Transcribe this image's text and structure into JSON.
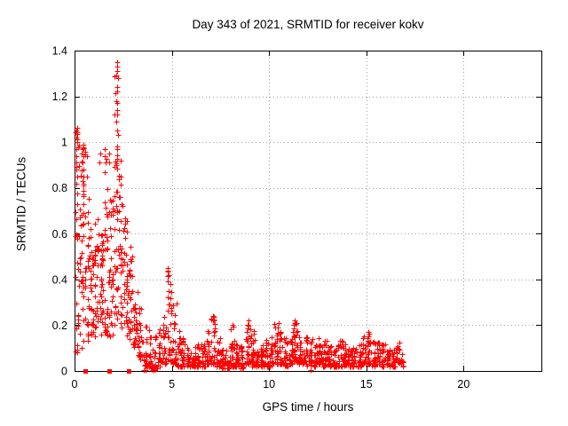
{
  "chart_data": {
    "type": "scatter",
    "title": "Day 343 of 2021, SRMTID for receiver kokv",
    "xlabel": "GPS time / hours",
    "ylabel": "SRMTID / TECUs",
    "xlim": [
      0,
      24
    ],
    "ylim": [
      0,
      1.4
    ],
    "x_tick_values": [
      0,
      5,
      10,
      15,
      20
    ],
    "x_tick_labels": [
      "0",
      "5",
      "10",
      "15",
      "20"
    ],
    "y_tick_values": [
      0,
      0.2,
      0.4,
      0.6,
      0.8,
      1,
      1.2,
      1.4
    ],
    "y_tick_labels": [
      "0",
      "0.2",
      "0.4",
      "0.6",
      "0.8",
      "1",
      "1.2",
      "1.4"
    ],
    "grid": true,
    "grid_color": "#a0a0a0",
    "border_color": "#000000",
    "marker_color": "#ff0000",
    "marker_symbol": "plus",
    "marker_size": 7,
    "legend": "none",
    "x_data_max": 16.9,
    "seed": 7,
    "series": [
      {
        "name": "srmtid-points",
        "marker": "plus",
        "color": "#ff0000",
        "comment_bins": "each bin = [x_start(h), y_min(TECU), y_max(TECU), point_count, low_bias_exponent] for a 0.25 h wide bin read off the plot envelope",
        "cluster_bins": [
          [
            0.0,
            0.08,
            1.07,
            34,
            1.1
          ],
          [
            0.25,
            0.1,
            1.0,
            36,
            1.2
          ],
          [
            0.5,
            0.12,
            0.97,
            32,
            1.3
          ],
          [
            0.75,
            0.15,
            0.62,
            26,
            1.2
          ],
          [
            1.0,
            0.15,
            0.68,
            30,
            1.1
          ],
          [
            1.25,
            0.15,
            0.6,
            30,
            1.2
          ],
          [
            1.5,
            0.15,
            0.93,
            30,
            1.5
          ],
          [
            1.75,
            0.15,
            0.92,
            30,
            1.4
          ],
          [
            2.0,
            0.2,
            1.3,
            40,
            1.5
          ],
          [
            2.25,
            0.18,
            0.97,
            30,
            1.4
          ],
          [
            2.5,
            0.15,
            0.68,
            28,
            1.3
          ],
          [
            2.75,
            0.12,
            0.55,
            26,
            1.3
          ],
          [
            3.0,
            0.1,
            0.37,
            24,
            1.3
          ],
          [
            3.25,
            0.05,
            0.3,
            22,
            1.5
          ],
          [
            3.5,
            0.02,
            0.22,
            20,
            1.8
          ],
          [
            3.75,
            0.01,
            0.18,
            18,
            1.8
          ],
          [
            4.0,
            0.01,
            0.16,
            18,
            1.8
          ],
          [
            4.25,
            0.02,
            0.2,
            18,
            1.8
          ],
          [
            4.5,
            0.03,
            0.25,
            18,
            1.8
          ],
          [
            4.75,
            0.04,
            0.44,
            28,
            1.6
          ],
          [
            5.0,
            0.03,
            0.3,
            24,
            2.0
          ],
          [
            5.25,
            0.02,
            0.18,
            20,
            2.0
          ],
          [
            5.5,
            0.02,
            0.15,
            20,
            2.0
          ],
          [
            5.75,
            0.02,
            0.13,
            20,
            2.0
          ],
          [
            6.0,
            0.02,
            0.12,
            20,
            2.0
          ],
          [
            6.25,
            0.02,
            0.14,
            20,
            2.0
          ],
          [
            6.5,
            0.02,
            0.12,
            20,
            2.0
          ],
          [
            6.75,
            0.03,
            0.18,
            22,
            2.0
          ],
          [
            7.0,
            0.03,
            0.24,
            26,
            1.9
          ],
          [
            7.25,
            0.02,
            0.16,
            20,
            2.0
          ],
          [
            7.5,
            0.01,
            0.12,
            20,
            2.0
          ],
          [
            7.75,
            0.01,
            0.1,
            18,
            2.0
          ],
          [
            8.0,
            0.02,
            0.2,
            24,
            1.9
          ],
          [
            8.25,
            0.02,
            0.16,
            20,
            2.0
          ],
          [
            8.5,
            0.01,
            0.14,
            20,
            2.2
          ],
          [
            8.75,
            0.03,
            0.22,
            24,
            1.9
          ],
          [
            9.0,
            0.02,
            0.2,
            22,
            2.0
          ],
          [
            9.25,
            0.02,
            0.15,
            20,
            2.0
          ],
          [
            9.5,
            0.02,
            0.12,
            20,
            2.0
          ],
          [
            9.75,
            0.02,
            0.14,
            20,
            2.0
          ],
          [
            10.0,
            0.02,
            0.15,
            20,
            2.0
          ],
          [
            10.25,
            0.03,
            0.21,
            24,
            1.9
          ],
          [
            10.5,
            0.03,
            0.2,
            22,
            2.0
          ],
          [
            10.75,
            0.02,
            0.15,
            20,
            2.0
          ],
          [
            11.0,
            0.03,
            0.18,
            22,
            2.0
          ],
          [
            11.25,
            0.04,
            0.22,
            26,
            1.9
          ],
          [
            11.5,
            0.03,
            0.18,
            22,
            2.0
          ],
          [
            11.75,
            0.02,
            0.15,
            20,
            2.0
          ],
          [
            12.0,
            0.02,
            0.14,
            20,
            2.0
          ],
          [
            12.25,
            0.02,
            0.12,
            20,
            2.0
          ],
          [
            12.5,
            0.03,
            0.15,
            22,
            2.0
          ],
          [
            12.75,
            0.02,
            0.14,
            20,
            2.0
          ],
          [
            13.0,
            0.02,
            0.12,
            20,
            2.0
          ],
          [
            13.25,
            0.02,
            0.12,
            20,
            2.0
          ],
          [
            13.5,
            0.02,
            0.14,
            20,
            2.0
          ],
          [
            13.75,
            0.02,
            0.13,
            20,
            2.0
          ],
          [
            14.0,
            0.02,
            0.12,
            20,
            2.0
          ],
          [
            14.25,
            0.02,
            0.13,
            20,
            2.0
          ],
          [
            14.5,
            0.02,
            0.12,
            20,
            2.0
          ],
          [
            14.75,
            0.03,
            0.15,
            20,
            2.0
          ],
          [
            15.0,
            0.03,
            0.17,
            22,
            1.9
          ],
          [
            15.25,
            0.02,
            0.14,
            20,
            2.0
          ],
          [
            15.5,
            0.03,
            0.15,
            20,
            2.0
          ],
          [
            15.75,
            0.02,
            0.12,
            20,
            2.0
          ],
          [
            16.0,
            0.02,
            0.1,
            18,
            2.0
          ],
          [
            16.25,
            0.02,
            0.1,
            18,
            2.0
          ],
          [
            16.5,
            0.03,
            0.13,
            18,
            1.9
          ],
          [
            16.75,
            0.02,
            0.12,
            10,
            1.8
          ]
        ],
        "peak_points": [
          [
            2.18,
            1.35
          ],
          [
            2.21,
            1.33
          ],
          [
            2.19,
            1.31
          ],
          [
            2.22,
            1.28
          ],
          [
            2.18,
            1.24
          ],
          [
            2.2,
            1.22
          ],
          [
            2.21,
            1.17
          ],
          [
            2.17,
            1.14
          ],
          [
            2.2,
            1.12
          ],
          [
            2.19,
            1.05
          ],
          [
            2.22,
            1.03
          ],
          [
            2.18,
            0.97
          ],
          [
            0.1,
            1.05
          ],
          [
            0.08,
            1.02
          ],
          [
            0.12,
            1.0
          ],
          [
            0.1,
            0.97
          ],
          [
            0.09,
            0.94
          ],
          [
            0.11,
            0.91
          ],
          [
            0.1,
            0.88
          ],
          [
            0.12,
            0.85
          ],
          [
            0.08,
            0.82
          ],
          [
            0.42,
            0.97
          ],
          [
            0.45,
            0.94
          ],
          [
            0.43,
            0.91
          ],
          [
            0.46,
            0.88
          ],
          [
            0.44,
            0.85
          ],
          [
            0.45,
            0.81
          ],
          [
            0.47,
            0.77
          ],
          [
            0.44,
            0.73
          ],
          [
            0.46,
            0.69
          ],
          [
            0.43,
            0.64
          ],
          [
            0.45,
            0.59
          ],
          [
            1.55,
            0.97
          ],
          [
            1.57,
            0.94
          ],
          [
            1.6,
            0.91
          ],
          [
            1.56,
            0.87
          ],
          [
            1.32,
            0.95
          ],
          [
            1.3,
            0.91
          ],
          [
            1.78,
            0.95
          ],
          [
            1.8,
            0.91
          ],
          [
            4.8,
            0.45
          ],
          [
            4.83,
            0.42
          ],
          [
            4.78,
            0.39
          ],
          [
            4.85,
            0.35
          ],
          [
            4.81,
            0.32
          ],
          [
            4.86,
            0.29
          ],
          [
            7.1,
            0.24
          ],
          [
            7.12,
            0.22
          ],
          [
            8.1,
            0.2
          ],
          [
            8.95,
            0.22
          ],
          [
            8.92,
            0.2
          ],
          [
            10.5,
            0.21
          ],
          [
            11.3,
            0.22
          ],
          [
            11.28,
            0.2
          ],
          [
            15.1,
            0.17
          ],
          [
            15.08,
            0.15
          ]
        ],
        "near_zero_points": [
          [
            3.58,
            0.005
          ],
          [
            3.65,
            0.005
          ],
          [
            4.02,
            0.005
          ],
          [
            4.1,
            0.005
          ],
          [
            8.52,
            0.01
          ],
          [
            12.15,
            0.005
          ]
        ]
      },
      {
        "name": "flag-squares",
        "marker": "filled-square",
        "color": "#ff0000",
        "size": 5,
        "points": [
          [
            0.55,
            0
          ],
          [
            1.77,
            0
          ],
          [
            2.78,
            0
          ]
        ]
      }
    ]
  }
}
